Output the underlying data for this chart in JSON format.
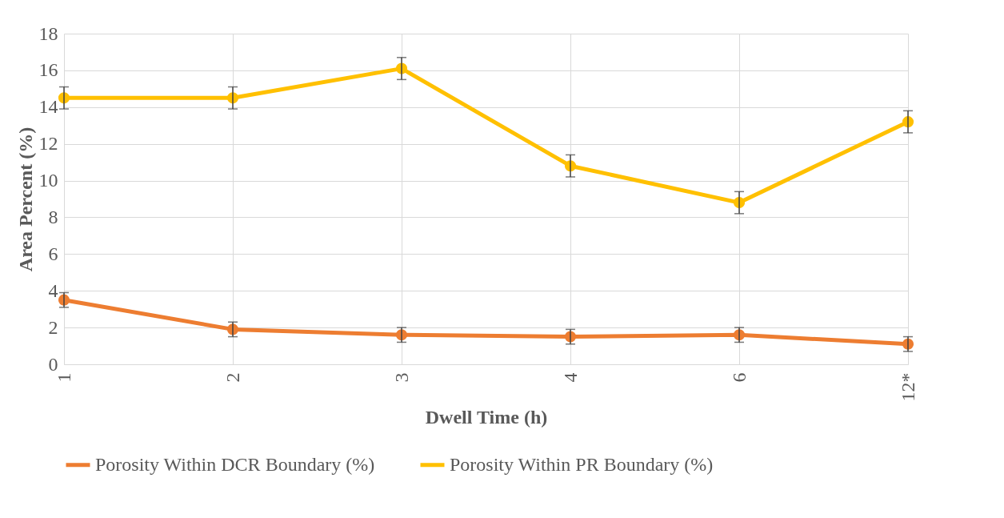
{
  "chart_data": {
    "type": "line",
    "xlabel": "Dwell Time (h)",
    "ylabel": "Area Percent (%)",
    "categories": [
      "1",
      "2",
      "3",
      "4",
      "6",
      "12*"
    ],
    "series": [
      {
        "name": "Porosity Within  DCR Boundary (%)",
        "color": "#ed7d31",
        "values": [
          3.5,
          1.9,
          1.6,
          1.5,
          1.6,
          1.1
        ],
        "errors": [
          0.4,
          0.4,
          0.4,
          0.4,
          0.4,
          0.4
        ]
      },
      {
        "name": "Porosity Within  PR Boundary (%)",
        "color": "#ffc000",
        "values": [
          14.5,
          14.5,
          16.1,
          10.8,
          8.8,
          13.2
        ],
        "errors": [
          0.6,
          0.6,
          0.6,
          0.6,
          0.6,
          0.6
        ]
      }
    ],
    "ylim": [
      0,
      18
    ],
    "yticks": [
      0,
      2,
      4,
      6,
      8,
      10,
      12,
      14,
      16,
      18
    ],
    "grid": true,
    "legend": "bottom",
    "marker": "circle"
  }
}
